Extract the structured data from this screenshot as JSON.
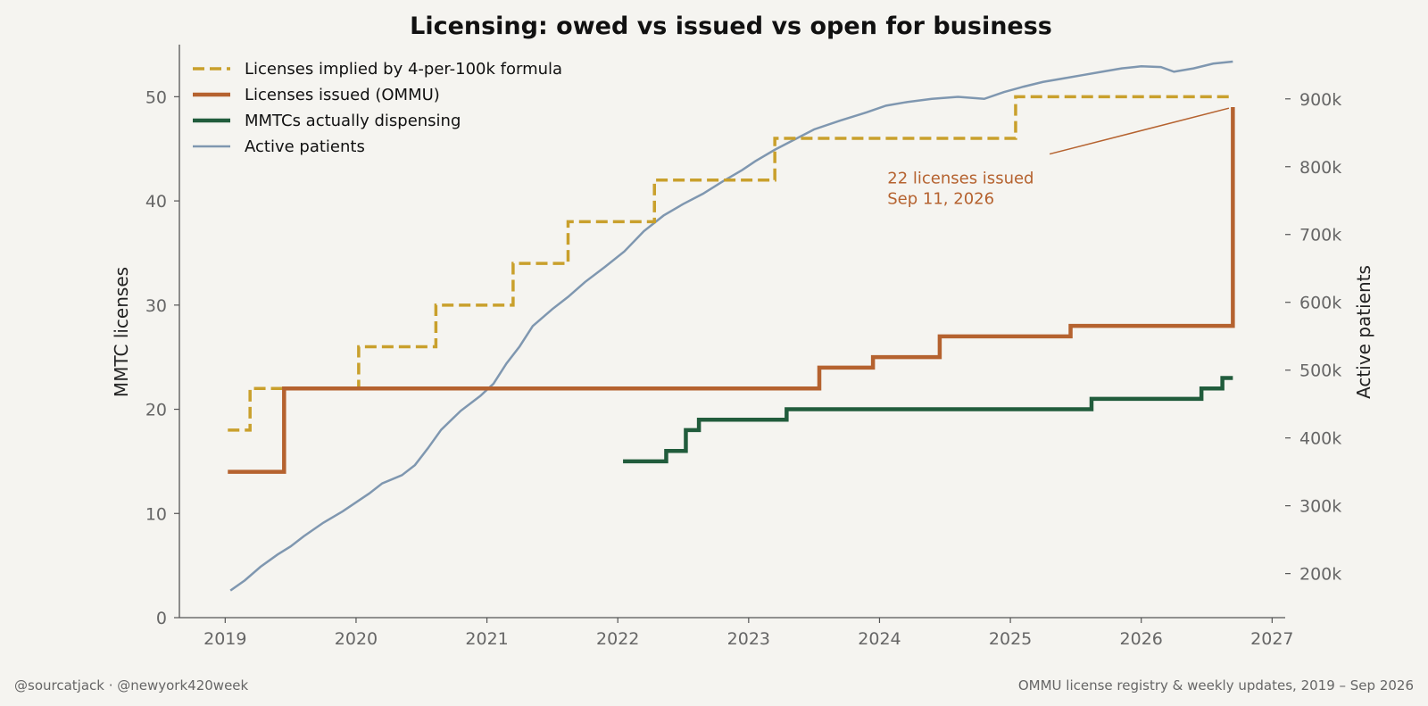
{
  "chart_data": {
    "type": "line",
    "title": "Licensing: owed vs issued vs open for business",
    "ylabel": "MMTC licenses",
    "y2label": "Active patients",
    "xlim": [
      2018.65,
      2027.1
    ],
    "ylim": [
      0,
      55
    ],
    "y2lim": [
      135000,
      980000
    ],
    "xticks": [
      2019,
      2020,
      2021,
      2022,
      2023,
      2024,
      2025,
      2026,
      2027
    ],
    "yticks": [
      0,
      10,
      20,
      30,
      40,
      50
    ],
    "y2ticks": [
      {
        "value": 200000,
        "label": "200k"
      },
      {
        "value": 300000,
        "label": "300k"
      },
      {
        "value": 400000,
        "label": "400k"
      },
      {
        "value": 500000,
        "label": "500k"
      },
      {
        "value": 600000,
        "label": "600k"
      },
      {
        "value": 700000,
        "label": "700k"
      },
      {
        "value": 800000,
        "label": "800k"
      },
      {
        "value": 900000,
        "label": "900k"
      }
    ],
    "legend_position": "top-left",
    "series": [
      {
        "name": "Licenses implied by 4-per-100k formula",
        "axis": "left",
        "style": "step-dashed",
        "color": "#c9a02c",
        "points": [
          [
            2019.02,
            18
          ],
          [
            2019.19,
            22
          ],
          [
            2020.02,
            26
          ],
          [
            2020.61,
            30
          ],
          [
            2021.2,
            34
          ],
          [
            2021.62,
            38
          ],
          [
            2022.28,
            42
          ],
          [
            2023.2,
            46
          ],
          [
            2025.04,
            50
          ],
          [
            2026.7,
            50
          ]
        ]
      },
      {
        "name": "Licenses issued (OMMU)",
        "axis": "left",
        "style": "step-solid",
        "color": "#b5622f",
        "points": [
          [
            2019.02,
            14
          ],
          [
            2019.45,
            22
          ],
          [
            2023.54,
            24
          ],
          [
            2023.95,
            25
          ],
          [
            2024.46,
            27
          ],
          [
            2025.46,
            28
          ],
          [
            2026.7,
            49
          ]
        ]
      },
      {
        "name": "MMTCs actually dispensing",
        "axis": "left",
        "style": "step-solid",
        "color": "#215c3c",
        "points": [
          [
            2022.04,
            15
          ],
          [
            2022.37,
            16
          ],
          [
            2022.52,
            18
          ],
          [
            2022.62,
            19
          ],
          [
            2023.29,
            20
          ],
          [
            2025.62,
            21
          ],
          [
            2026.46,
            22
          ],
          [
            2026.62,
            23
          ],
          [
            2026.7,
            23
          ]
        ]
      },
      {
        "name": "Active patients",
        "axis": "right",
        "style": "line",
        "color": "#7f97b0",
        "points": [
          [
            2019.04,
            175000
          ],
          [
            2019.15,
            190000
          ],
          [
            2019.27,
            210000
          ],
          [
            2019.4,
            228000
          ],
          [
            2019.5,
            240000
          ],
          [
            2019.6,
            255000
          ],
          [
            2019.75,
            275000
          ],
          [
            2019.9,
            292000
          ],
          [
            2020.0,
            305000
          ],
          [
            2020.1,
            318000
          ],
          [
            2020.2,
            333000
          ],
          [
            2020.35,
            345000
          ],
          [
            2020.45,
            360000
          ],
          [
            2020.55,
            385000
          ],
          [
            2020.65,
            412000
          ],
          [
            2020.8,
            440000
          ],
          [
            2020.95,
            462000
          ],
          [
            2021.05,
            480000
          ],
          [
            2021.15,
            510000
          ],
          [
            2021.25,
            535000
          ],
          [
            2021.35,
            565000
          ],
          [
            2021.5,
            590000
          ],
          [
            2021.62,
            608000
          ],
          [
            2021.75,
            630000
          ],
          [
            2021.9,
            652000
          ],
          [
            2022.05,
            675000
          ],
          [
            2022.2,
            705000
          ],
          [
            2022.35,
            728000
          ],
          [
            2022.5,
            745000
          ],
          [
            2022.65,
            760000
          ],
          [
            2022.8,
            778000
          ],
          [
            2022.95,
            795000
          ],
          [
            2023.05,
            808000
          ],
          [
            2023.2,
            825000
          ],
          [
            2023.35,
            840000
          ],
          [
            2023.5,
            855000
          ],
          [
            2023.7,
            868000
          ],
          [
            2023.9,
            880000
          ],
          [
            2024.05,
            890000
          ],
          [
            2024.2,
            895000
          ],
          [
            2024.4,
            900000
          ],
          [
            2024.6,
            903000
          ],
          [
            2024.8,
            900000
          ],
          [
            2024.95,
            910000
          ],
          [
            2025.1,
            918000
          ],
          [
            2025.25,
            925000
          ],
          [
            2025.4,
            930000
          ],
          [
            2025.55,
            935000
          ],
          [
            2025.7,
            940000
          ],
          [
            2025.85,
            945000
          ],
          [
            2026.0,
            948000
          ],
          [
            2026.15,
            947000
          ],
          [
            2026.25,
            940000
          ],
          [
            2026.4,
            945000
          ],
          [
            2026.55,
            952000
          ],
          [
            2026.7,
            955000
          ]
        ]
      }
    ],
    "annotation": {
      "line1": "22 licenses issued",
      "line2": "Sep 11, 2026",
      "target": [
        2026.67,
        48.9
      ],
      "label_at": [
        2024.06,
        41
      ],
      "color": "#b5622f"
    }
  },
  "footer": {
    "left": "@sourcatjack · @newyork420week",
    "right": "OMMU license registry & weekly updates, 2019 – Sep 2026"
  }
}
